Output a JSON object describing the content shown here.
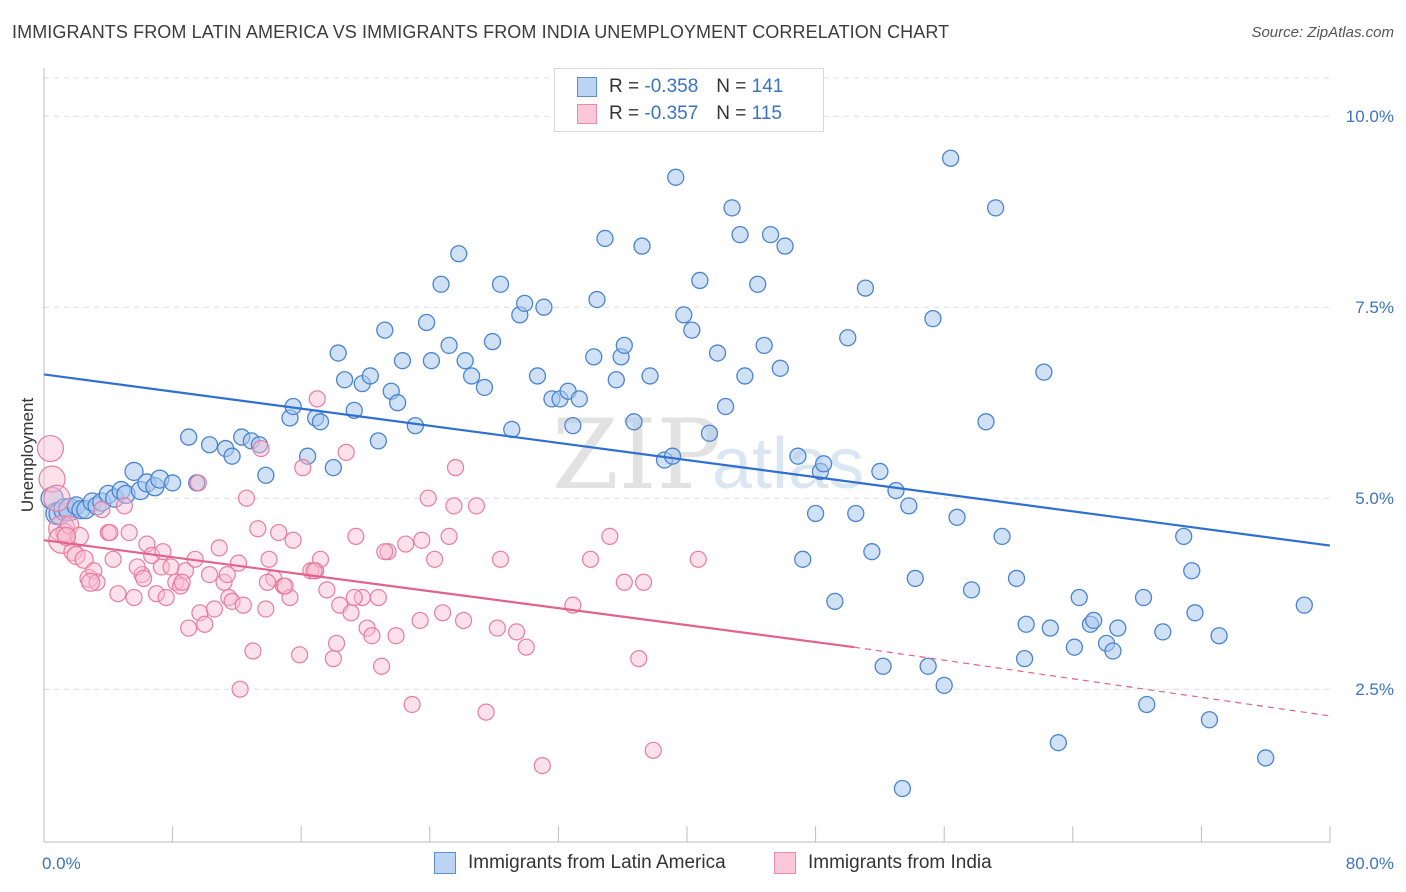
{
  "title": "IMMIGRANTS FROM LATIN AMERICA VS IMMIGRANTS FROM INDIA UNEMPLOYMENT CORRELATION CHART",
  "source": "Source: ZipAtlas.com",
  "legend": {
    "rows": [
      {
        "r_label": "R = ",
        "r_value": "-0.358",
        "n_label": "N = ",
        "n_value": "141"
      },
      {
        "r_label": "R = ",
        "r_value": "-0.357",
        "n_label": "N = ",
        "n_value": "115"
      }
    ]
  },
  "bottom_legend": [
    "Immigrants from Latin America",
    "Immigrants from India"
  ],
  "colors": {
    "series1_fill": "#a9c8ee",
    "series1_stroke": "#4a84cf",
    "series1_line": "#2f6fcf",
    "series2_fill": "#f8bdd0",
    "series2_stroke": "#e77ca0",
    "series2_line": "#e0628e",
    "tick_text": "#3b73c4",
    "grid": "#dcdcdc"
  },
  "chart_data": {
    "type": "scatter",
    "title": "IMMIGRANTS FROM LATIN AMERICA VS IMMIGRANTS FROM INDIA UNEMPLOYMENT CORRELATION CHART",
    "xlabel": "",
    "ylabel": "Unemployment",
    "xlim": [
      0,
      80
    ],
    "ylim": [
      0.5,
      10.5
    ],
    "x_tick_labels": [
      "0.0%",
      "80.0%"
    ],
    "y_ticks": [
      2.5,
      5.0,
      7.5,
      10.0
    ],
    "y_tick_labels": [
      "2.5%",
      "5.0%",
      "7.5%",
      "10.0%"
    ],
    "grid": true,
    "legend_position": "top-center",
    "series": [
      {
        "name": "Immigrants from Latin America",
        "r": -0.358,
        "n": 141,
        "trend": {
          "x": [
            0,
            80
          ],
          "y": [
            6.62,
            4.38
          ]
        },
        "points": [
          [
            0.5,
            5.0
          ],
          [
            0.8,
            4.8
          ],
          [
            1.0,
            4.8
          ],
          [
            1.3,
            4.85
          ],
          [
            1.6,
            4.85
          ],
          [
            2.0,
            4.9
          ],
          [
            2.3,
            4.85
          ],
          [
            2.6,
            4.85
          ],
          [
            3.0,
            4.95
          ],
          [
            3.3,
            4.9
          ],
          [
            3.6,
            4.95
          ],
          [
            4.0,
            5.05
          ],
          [
            4.4,
            5.0
          ],
          [
            4.8,
            5.1
          ],
          [
            5.1,
            5.05
          ],
          [
            5.6,
            5.35
          ],
          [
            6.0,
            5.1
          ],
          [
            6.4,
            5.2
          ],
          [
            6.9,
            5.15
          ],
          [
            7.2,
            5.25
          ],
          [
            8.0,
            5.2
          ],
          [
            9.5,
            5.2
          ],
          [
            9.0,
            5.8
          ],
          [
            10.3,
            5.7
          ],
          [
            11.3,
            5.65
          ],
          [
            12.3,
            5.8
          ],
          [
            12.9,
            5.75
          ],
          [
            11.7,
            5.55
          ],
          [
            13.4,
            5.7
          ],
          [
            13.8,
            5.3
          ],
          [
            15.3,
            6.05
          ],
          [
            15.5,
            6.2
          ],
          [
            16.4,
            5.55
          ],
          [
            16.9,
            6.05
          ],
          [
            17.2,
            6.0
          ],
          [
            18.0,
            5.4
          ],
          [
            18.3,
            6.9
          ],
          [
            18.7,
            6.55
          ],
          [
            19.3,
            6.15
          ],
          [
            19.8,
            6.5
          ],
          [
            20.3,
            6.6
          ],
          [
            20.8,
            5.75
          ],
          [
            21.2,
            7.2
          ],
          [
            21.6,
            6.4
          ],
          [
            22.3,
            6.8
          ],
          [
            22.0,
            6.25
          ],
          [
            23.1,
            5.95
          ],
          [
            23.8,
            7.3
          ],
          [
            24.1,
            6.8
          ],
          [
            24.7,
            7.8
          ],
          [
            25.2,
            7.0
          ],
          [
            25.8,
            8.2
          ],
          [
            26.2,
            6.8
          ],
          [
            26.6,
            6.6
          ],
          [
            27.4,
            6.45
          ],
          [
            27.9,
            7.05
          ],
          [
            28.4,
            7.8
          ],
          [
            29.1,
            5.9
          ],
          [
            29.6,
            7.4
          ],
          [
            29.9,
            7.55
          ],
          [
            30.7,
            6.6
          ],
          [
            31.1,
            7.5
          ],
          [
            31.6,
            6.3
          ],
          [
            32.1,
            6.3
          ],
          [
            32.6,
            6.4
          ],
          [
            32.9,
            5.95
          ],
          [
            33.3,
            6.3
          ],
          [
            34.2,
            6.85
          ],
          [
            34.4,
            7.6
          ],
          [
            34.9,
            8.4
          ],
          [
            35.6,
            6.55
          ],
          [
            35.9,
            6.85
          ],
          [
            36.1,
            7.0
          ],
          [
            36.7,
            6.0
          ],
          [
            37.2,
            8.3
          ],
          [
            37.7,
            6.6
          ],
          [
            38.6,
            5.5
          ],
          [
            39.1,
            5.55
          ],
          [
            39.3,
            9.2
          ],
          [
            39.8,
            7.4
          ],
          [
            40.3,
            7.2
          ],
          [
            40.8,
            7.85
          ],
          [
            41.4,
            5.85
          ],
          [
            41.9,
            6.9
          ],
          [
            42.4,
            6.2
          ],
          [
            42.8,
            8.8
          ],
          [
            43.3,
            8.45
          ],
          [
            43.6,
            6.6
          ],
          [
            44.4,
            7.8
          ],
          [
            44.8,
            7.0
          ],
          [
            45.2,
            8.45
          ],
          [
            45.8,
            6.7
          ],
          [
            46.1,
            8.3
          ],
          [
            46.9,
            5.55
          ],
          [
            47.2,
            4.2
          ],
          [
            48.0,
            4.8
          ],
          [
            48.3,
            5.35
          ],
          [
            48.5,
            5.45
          ],
          [
            49.2,
            3.65
          ],
          [
            50.0,
            7.1
          ],
          [
            50.5,
            4.8
          ],
          [
            51.1,
            7.75
          ],
          [
            51.5,
            4.3
          ],
          [
            52.0,
            5.35
          ],
          [
            52.2,
            2.8
          ],
          [
            53.0,
            5.1
          ],
          [
            53.4,
            1.2
          ],
          [
            53.8,
            4.9
          ],
          [
            54.2,
            3.95
          ],
          [
            55.0,
            2.8
          ],
          [
            55.3,
            7.35
          ],
          [
            56.0,
            2.55
          ],
          [
            56.4,
            9.45
          ],
          [
            56.8,
            4.75
          ],
          [
            57.7,
            3.8
          ],
          [
            58.6,
            6.0
          ],
          [
            59.2,
            8.8
          ],
          [
            59.6,
            4.5
          ],
          [
            60.5,
            3.95
          ],
          [
            61.0,
            2.9
          ],
          [
            61.1,
            3.35
          ],
          [
            62.2,
            6.65
          ],
          [
            62.6,
            3.3
          ],
          [
            63.1,
            1.8
          ],
          [
            64.1,
            3.05
          ],
          [
            64.4,
            3.7
          ],
          [
            65.1,
            3.35
          ],
          [
            65.3,
            3.4
          ],
          [
            66.1,
            3.1
          ],
          [
            66.5,
            3.0
          ],
          [
            66.8,
            3.3
          ],
          [
            68.4,
            3.7
          ],
          [
            68.6,
            2.3
          ],
          [
            69.6,
            3.25
          ],
          [
            70.9,
            4.5
          ],
          [
            71.4,
            4.05
          ],
          [
            71.6,
            3.5
          ],
          [
            72.5,
            2.1
          ],
          [
            73.1,
            3.2
          ],
          [
            76.0,
            1.6
          ],
          [
            78.4,
            3.6
          ]
        ]
      },
      {
        "name": "Immigrants from India",
        "r": -0.357,
        "n": 115,
        "trend": {
          "x": [
            0,
            50.4,
            80
          ],
          "y": [
            4.45,
            3.05,
            2.15
          ]
        },
        "points": [
          [
            0.4,
            5.65
          ],
          [
            0.5,
            5.25
          ],
          [
            0.8,
            5.0
          ],
          [
            1.1,
            4.6
          ],
          [
            1.3,
            4.55
          ],
          [
            1.1,
            4.45
          ],
          [
            1.6,
            4.65
          ],
          [
            1.8,
            4.3
          ],
          [
            2.0,
            4.25
          ],
          [
            2.2,
            4.5
          ],
          [
            2.5,
            4.2
          ],
          [
            2.8,
            3.95
          ],
          [
            3.1,
            4.05
          ],
          [
            3.3,
            3.9
          ],
          [
            3.6,
            4.85
          ],
          [
            4.0,
            4.55
          ],
          [
            4.3,
            4.2
          ],
          [
            4.6,
            3.75
          ],
          [
            5.0,
            4.9
          ],
          [
            5.3,
            4.55
          ],
          [
            5.6,
            3.7
          ],
          [
            6.1,
            4.0
          ],
          [
            6.4,
            4.4
          ],
          [
            6.7,
            4.25
          ],
          [
            7.0,
            3.75
          ],
          [
            7.3,
            4.1
          ],
          [
            7.6,
            3.7
          ],
          [
            7.9,
            4.1
          ],
          [
            8.2,
            3.9
          ],
          [
            8.5,
            3.85
          ],
          [
            8.8,
            4.05
          ],
          [
            9.0,
            3.3
          ],
          [
            9.4,
            4.2
          ],
          [
            9.7,
            3.5
          ],
          [
            10.0,
            3.35
          ],
          [
            10.3,
            4.0
          ],
          [
            10.6,
            3.55
          ],
          [
            10.9,
            4.35
          ],
          [
            11.2,
            3.9
          ],
          [
            11.5,
            3.7
          ],
          [
            11.7,
            3.65
          ],
          [
            12.1,
            4.15
          ],
          [
            12.4,
            3.6
          ],
          [
            12.6,
            5.0
          ],
          [
            13.0,
            3.0
          ],
          [
            13.3,
            4.6
          ],
          [
            13.5,
            5.65
          ],
          [
            13.8,
            3.55
          ],
          [
            14.0,
            4.2
          ],
          [
            14.3,
            3.95
          ],
          [
            14.6,
            4.55
          ],
          [
            14.9,
            3.85
          ],
          [
            15.3,
            3.7
          ],
          [
            15.5,
            4.45
          ],
          [
            15.9,
            2.95
          ],
          [
            16.1,
            5.4
          ],
          [
            16.6,
            4.05
          ],
          [
            16.9,
            4.05
          ],
          [
            17.2,
            4.2
          ],
          [
            17.6,
            3.8
          ],
          [
            18.0,
            2.9
          ],
          [
            18.2,
            3.1
          ],
          [
            18.4,
            3.6
          ],
          [
            18.8,
            5.6
          ],
          [
            19.1,
            3.5
          ],
          [
            19.4,
            4.5
          ],
          [
            19.8,
            3.7
          ],
          [
            20.1,
            3.3
          ],
          [
            20.4,
            3.2
          ],
          [
            20.8,
            3.7
          ],
          [
            21.0,
            2.8
          ],
          [
            21.4,
            4.3
          ],
          [
            21.9,
            3.2
          ],
          [
            22.5,
            4.4
          ],
          [
            22.9,
            2.3
          ],
          [
            23.4,
            3.4
          ],
          [
            23.9,
            5.0
          ],
          [
            24.3,
            4.2
          ],
          [
            24.8,
            3.5
          ],
          [
            25.2,
            4.5
          ],
          [
            25.6,
            5.4
          ],
          [
            26.1,
            3.4
          ],
          [
            26.9,
            4.9
          ],
          [
            27.5,
            2.2
          ],
          [
            28.4,
            4.2
          ],
          [
            29.4,
            3.25
          ],
          [
            30.0,
            3.05
          ],
          [
            31.0,
            1.5
          ],
          [
            32.9,
            3.6
          ],
          [
            34.0,
            4.2
          ],
          [
            35.2,
            4.5
          ],
          [
            36.1,
            3.9
          ],
          [
            37.0,
            2.9
          ],
          [
            37.3,
            3.9
          ],
          [
            37.9,
            1.7
          ],
          [
            40.7,
            4.2
          ],
          [
            1.4,
            4.5
          ],
          [
            2.9,
            3.9
          ],
          [
            4.1,
            4.55
          ],
          [
            5.8,
            4.1
          ],
          [
            6.2,
            3.95
          ],
          [
            7.4,
            4.3
          ],
          [
            8.6,
            3.9
          ],
          [
            9.6,
            5.2
          ],
          [
            11.4,
            4.0
          ],
          [
            12.2,
            2.5
          ],
          [
            13.9,
            3.9
          ],
          [
            15.0,
            3.85
          ],
          [
            16.8,
            4.05
          ],
          [
            17.0,
            6.3
          ],
          [
            19.3,
            3.7
          ],
          [
            21.2,
            4.3
          ],
          [
            23.5,
            4.45
          ],
          [
            25.5,
            4.9
          ],
          [
            28.2,
            3.3
          ]
        ]
      }
    ]
  }
}
